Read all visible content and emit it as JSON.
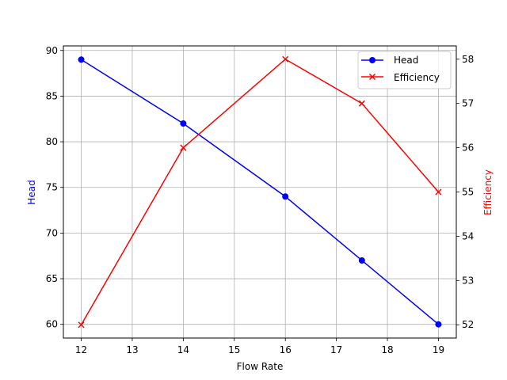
{
  "chart_data": {
    "type": "line",
    "title": "",
    "xlabel": "Flow Rate",
    "ylabel_left": "Head",
    "ylabel_right": "Efficiency",
    "x": [
      12,
      14,
      16,
      17.5,
      19
    ],
    "series": [
      {
        "name": "Head",
        "axis": "left",
        "color": "#0000ff",
        "marker": "o",
        "values": [
          89,
          82,
          74,
          67,
          60
        ]
      },
      {
        "name": "Efficiency",
        "axis": "right",
        "color": "#ff0000",
        "marker": "x",
        "values": [
          52,
          56,
          58,
          57,
          55
        ]
      }
    ],
    "xticks": [
      12,
      13,
      14,
      15,
      16,
      17,
      18,
      19
    ],
    "yticks_left": [
      60,
      65,
      70,
      75,
      80,
      85,
      90
    ],
    "yticks_right": [
      52,
      53,
      54,
      55,
      56,
      57,
      58
    ],
    "xlim": [
      11.65,
      19.35
    ],
    "ylim_left": [
      58.5,
      90.5
    ],
    "ylim_right": [
      51.7,
      58.3
    ],
    "grid": true,
    "legend_position": "upper right"
  },
  "labels": {
    "xlabel": "Flow Rate",
    "ylabel_left": "Head",
    "ylabel_right": "Efficiency",
    "legend_head": "Head",
    "legend_eff": "Efficiency"
  }
}
